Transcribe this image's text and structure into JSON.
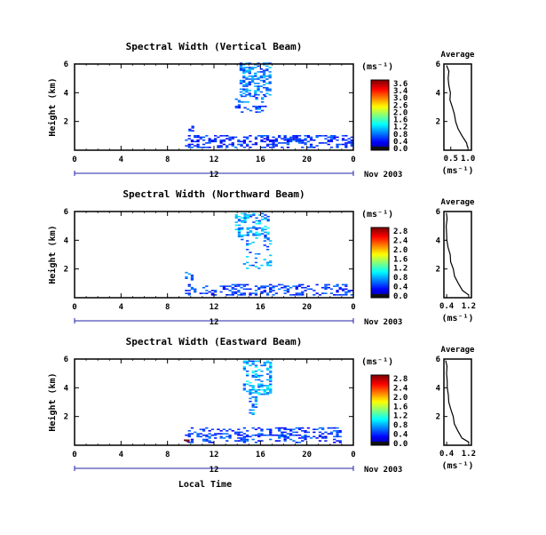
{
  "chart_data": [
    {
      "type": "heatmap",
      "title": "Spectral Width (Vertical Beam)",
      "ylabel": "Height (km)",
      "xlabel": "",
      "x_ticks": [
        "0",
        "4",
        "8",
        "12",
        "16",
        "20",
        "0"
      ],
      "xlim": [
        0,
        24
      ],
      "y_ticks": [
        "6",
        "4",
        "2"
      ],
      "ylim": [
        0,
        6
      ],
      "day_label": "12",
      "date_label": "Nov 2003",
      "colorbar": {
        "unit": "(ms⁻¹)",
        "ticks": [
          "3.6",
          "3.4",
          "3.0",
          "2.6",
          "2.0",
          "1.6",
          "1.2",
          "0.8",
          "0.4",
          "0.0"
        ],
        "range": [
          0,
          3.6
        ]
      },
      "clusters": [
        {
          "t": [
            9.5,
            24
          ],
          "h": [
            0.15,
            1.0
          ],
          "v": 0.6,
          "density": 0.45
        },
        {
          "t": [
            14.2,
            16.8
          ],
          "h": [
            3.8,
            6.0
          ],
          "v": 0.9,
          "density": 0.5
        },
        {
          "t": [
            13.8,
            16.5
          ],
          "h": [
            2.6,
            3.8
          ],
          "v": 0.8,
          "density": 0.2
        },
        {
          "t": [
            9.8,
            10.2
          ],
          "h": [
            1.0,
            1.8
          ],
          "v": 0.6,
          "density": 0.4
        }
      ],
      "average": {
        "title": "Average",
        "xlabel": "(ms⁻¹)",
        "x_ticks": [
          "0.5",
          "1.0"
        ],
        "xlim": [
          0.3,
          1.1
        ],
        "y_ticks": [
          "6",
          "4",
          "2"
        ],
        "ylim": [
          0,
          6
        ],
        "profile": [
          [
            0.2,
            1.0
          ],
          [
            0.5,
            0.95
          ],
          [
            1.0,
            0.85
          ],
          [
            1.5,
            0.7
          ],
          [
            2.0,
            0.65
          ],
          [
            2.5,
            0.6
          ],
          [
            3.0,
            0.55
          ],
          [
            3.5,
            0.5
          ],
          [
            4.0,
            0.48
          ],
          [
            4.5,
            0.45
          ],
          [
            5.0,
            0.42
          ],
          [
            5.5,
            0.45
          ],
          [
            5.9,
            0.4
          ]
        ]
      }
    },
    {
      "type": "heatmap",
      "title": "Spectral Width (Northward Beam)",
      "ylabel": "Height (km)",
      "xlabel": "",
      "x_ticks": [
        "0",
        "4",
        "8",
        "12",
        "16",
        "20",
        "0"
      ],
      "xlim": [
        0,
        24
      ],
      "y_ticks": [
        "6",
        "4",
        "2"
      ],
      "ylim": [
        0,
        6
      ],
      "day_label": "12",
      "date_label": "Nov 2003",
      "colorbar": {
        "unit": "(ms⁻¹)",
        "ticks": [
          "2.8",
          "2.4",
          "2.0",
          "1.6",
          "1.2",
          "0.8",
          "0.4",
          "0.0"
        ],
        "range": [
          0,
          2.8
        ]
      },
      "clusters": [
        {
          "t": [
            9.5,
            24
          ],
          "h": [
            0.15,
            0.9
          ],
          "v": 0.5,
          "density": 0.35
        },
        {
          "t": [
            13.8,
            16.6
          ],
          "h": [
            4.0,
            5.8
          ],
          "v": 0.8,
          "density": 0.4
        },
        {
          "t": [
            14.5,
            16.8
          ],
          "h": [
            2.0,
            4.0
          ],
          "v": 0.7,
          "density": 0.2
        },
        {
          "t": [
            9.5,
            10.2
          ],
          "h": [
            1.2,
            1.8
          ],
          "v": 0.6,
          "density": 0.4
        }
      ],
      "average": {
        "title": "Average",
        "xlabel": "(ms⁻¹)",
        "x_ticks": [
          "0.4",
          "1.2"
        ],
        "xlim": [
          0.3,
          1.3
        ],
        "y_ticks": [
          "6",
          "4",
          "2"
        ],
        "ylim": [
          0,
          6
        ],
        "profile": [
          [
            0.2,
            1.2
          ],
          [
            0.5,
            0.95
          ],
          [
            1.0,
            0.8
          ],
          [
            1.5,
            0.7
          ],
          [
            2.0,
            0.65
          ],
          [
            2.5,
            0.55
          ],
          [
            3.0,
            0.5
          ],
          [
            3.5,
            0.45
          ],
          [
            4.0,
            0.42
          ],
          [
            4.5,
            0.4
          ],
          [
            5.0,
            0.38
          ],
          [
            5.5,
            0.4
          ],
          [
            5.9,
            0.36
          ]
        ]
      }
    },
    {
      "type": "heatmap",
      "title": "Spectral Width (Eastward Beam)",
      "ylabel": "Height (km)",
      "xlabel": "Local Time",
      "x_ticks": [
        "0",
        "4",
        "8",
        "12",
        "16",
        "20",
        "0"
      ],
      "xlim": [
        0,
        24
      ],
      "y_ticks": [
        "6",
        "4",
        "2"
      ],
      "ylim": [
        0,
        6
      ],
      "day_label": "12",
      "date_label": "Nov 2003",
      "colorbar": {
        "unit": "(ms⁻¹)",
        "ticks": [
          "2.8",
          "2.4",
          "2.0",
          "1.6",
          "1.2",
          "0.8",
          "0.4",
          "0.0"
        ],
        "range": [
          0,
          2.8
        ]
      },
      "clusters": [
        {
          "t": [
            9.5,
            23
          ],
          "h": [
            0.15,
            1.2
          ],
          "v": 0.5,
          "density": 0.35
        },
        {
          "t": [
            14.5,
            16.8
          ],
          "h": [
            3.5,
            5.8
          ],
          "v": 0.8,
          "density": 0.45
        },
        {
          "t": [
            15.0,
            15.6
          ],
          "h": [
            2.0,
            3.5
          ],
          "v": 0.7,
          "density": 0.3
        },
        {
          "t": [
            9.4,
            9.8
          ],
          "h": [
            0.2,
            0.5
          ],
          "v": 2.6,
          "density": 0.6
        }
      ],
      "average": {
        "title": "Average",
        "xlabel": "(ms⁻¹)",
        "x_ticks": [
          "0.4",
          "1.2"
        ],
        "xlim": [
          0.3,
          1.3
        ],
        "y_ticks": [
          "6",
          "4",
          "2"
        ],
        "ylim": [
          0,
          6
        ],
        "profile": [
          [
            0.2,
            1.2
          ],
          [
            0.5,
            0.95
          ],
          [
            1.0,
            0.8
          ],
          [
            1.5,
            0.7
          ],
          [
            2.0,
            0.62
          ],
          [
            2.5,
            0.55
          ],
          [
            3.0,
            0.5
          ],
          [
            3.5,
            0.46
          ],
          [
            4.0,
            0.43
          ],
          [
            4.5,
            0.4
          ],
          [
            5.0,
            0.38
          ],
          [
            5.5,
            0.4
          ],
          [
            5.9,
            0.37
          ]
        ]
      }
    }
  ]
}
